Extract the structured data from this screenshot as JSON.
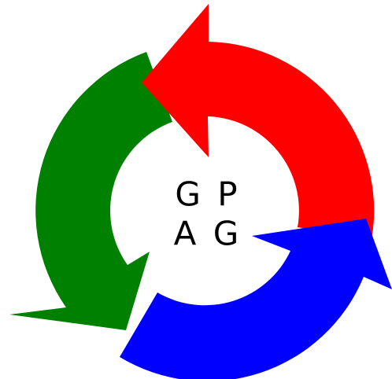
{
  "center_text": {
    "lines": [
      "G P",
      "A G"
    ]
  }
}
